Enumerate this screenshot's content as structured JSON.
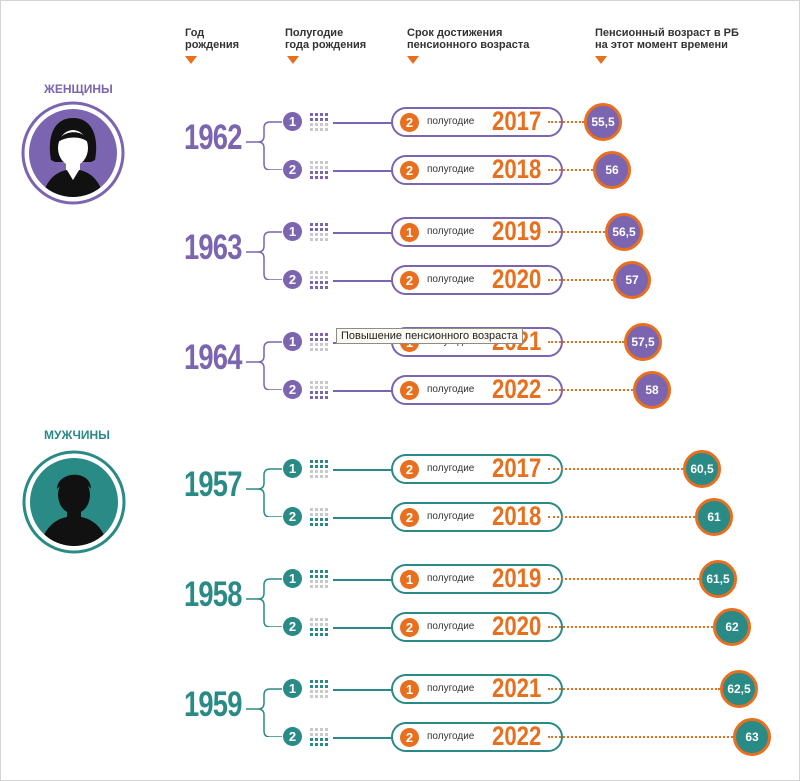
{
  "headers": {
    "birth_year": [
      "Год",
      "рождения"
    ],
    "birth_half": [
      "Полугодие",
      "года рождения"
    ],
    "deadline": [
      "Срок достижения",
      "пенсионного возраста"
    ],
    "age": [
      "Пенсионный возраст в РБ",
      "на этот момент времени"
    ]
  },
  "half_word": "полугодие",
  "colors": {
    "women": "#7b64b0",
    "men": "#2a8a86",
    "accent": "#e86f1e"
  },
  "groups": [
    {
      "label": "ЖЕНЩИНЫ",
      "icon": "woman-avatar-icon",
      "color": "women",
      "years": [
        {
          "year": "1962",
          "rows": [
            {
              "birth_half": "1",
              "deadline_half": "2",
              "deadline_year": "2017",
              "age": "55,5"
            },
            {
              "birth_half": "2",
              "deadline_half": "2",
              "deadline_year": "2018",
              "age": "56"
            }
          ]
        },
        {
          "year": "1963",
          "rows": [
            {
              "birth_half": "1",
              "deadline_half": "1",
              "deadline_year": "2019",
              "age": "56,5"
            },
            {
              "birth_half": "2",
              "deadline_half": "2",
              "deadline_year": "2020",
              "age": "57"
            }
          ]
        },
        {
          "year": "1964",
          "rows": [
            {
              "birth_half": "1",
              "deadline_half": "1",
              "deadline_year": "2021",
              "age": "57,5"
            },
            {
              "birth_half": "2",
              "deadline_half": "2",
              "deadline_year": "2022",
              "age": "58"
            }
          ]
        }
      ]
    },
    {
      "label": "МУЖЧИНЫ",
      "icon": "man-avatar-icon",
      "color": "men",
      "years": [
        {
          "year": "1957",
          "rows": [
            {
              "birth_half": "1",
              "deadline_half": "2",
              "deadline_year": "2017",
              "age": "60,5"
            },
            {
              "birth_half": "2",
              "deadline_half": "2",
              "deadline_year": "2018",
              "age": "61"
            }
          ]
        },
        {
          "year": "1958",
          "rows": [
            {
              "birth_half": "1",
              "deadline_half": "1",
              "deadline_year": "2019",
              "age": "61,5"
            },
            {
              "birth_half": "2",
              "deadline_half": "2",
              "deadline_year": "2020",
              "age": "62"
            }
          ]
        },
        {
          "year": "1959",
          "rows": [
            {
              "birth_half": "1",
              "deadline_half": "1",
              "deadline_year": "2021",
              "age": "62,5"
            },
            {
              "birth_half": "2",
              "deadline_half": "2",
              "deadline_year": "2022",
              "age": "63"
            }
          ]
        }
      ]
    }
  ],
  "tooltip": "Повышение пенсионного возраста"
}
